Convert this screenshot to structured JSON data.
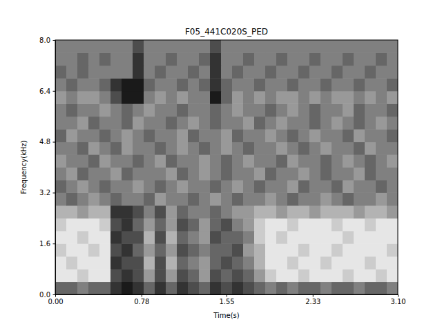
{
  "chart_data": {
    "type": "heatmap",
    "title": "F05_441C020S_PED",
    "x_label": "Time(s)",
    "y_label": "Frequency(kHz)",
    "xlim": [
      0,
      3.1
    ],
    "ylim": [
      0,
      8.0
    ],
    "xticks": [
      {
        "value": 0,
        "label": "0.00"
      },
      0.78,
      1.55,
      2.33,
      {
        "value": 3.1,
        "label": "3.10"
      }
    ],
    "yticks": [
      {
        "value": 0,
        "label": "0.0"
      },
      1.6,
      3.2,
      4.8,
      6.4,
      {
        "value": 8.0,
        "label": "8.0"
      }
    ],
    "color_range": [
      0,
      1
    ],
    "cells": [
      [
        0.6,
        0.6,
        0.5,
        0.6,
        0.6,
        0.8,
        0.9,
        0.8,
        0.6,
        0.8,
        0.6,
        0.8,
        0.7,
        0.6,
        0.8,
        0.7,
        0.8,
        0.7,
        0.6,
        0.5,
        0.6,
        0.5,
        0.6,
        0.6,
        0.5,
        0.6,
        0.6,
        0.5,
        0.6,
        0.6,
        0.5
      ],
      [
        0.1,
        0.1,
        0.2,
        0.1,
        0.1,
        0.7,
        0.8,
        0.7,
        0.4,
        0.7,
        0.4,
        0.7,
        0.6,
        0.4,
        0.7,
        0.6,
        0.7,
        0.6,
        0.4,
        0.2,
        0.1,
        0.1,
        0.2,
        0.1,
        0.1,
        0.1,
        0.2,
        0.1,
        0.1,
        0.2,
        0.1
      ],
      [
        0.1,
        0.2,
        0.1,
        0.1,
        0.1,
        0.8,
        0.7,
        0.7,
        0.3,
        0.7,
        0.3,
        0.6,
        0.5,
        0.4,
        0.6,
        0.7,
        0.6,
        0.5,
        0.3,
        0.1,
        0.1,
        0.2,
        0.1,
        0.1,
        0.2,
        0.1,
        0.1,
        0.1,
        0.2,
        0.1,
        0.1
      ],
      [
        0.2,
        0.1,
        0.1,
        0.2,
        0.1,
        0.7,
        0.8,
        0.6,
        0.4,
        0.6,
        0.4,
        0.7,
        0.6,
        0.5,
        0.6,
        0.6,
        0.7,
        0.4,
        0.3,
        0.1,
        0.1,
        0.1,
        0.2,
        0.1,
        0.1,
        0.2,
        0.1,
        0.1,
        0.1,
        0.1,
        0.2
      ],
      [
        0.1,
        0.1,
        0.2,
        0.1,
        0.1,
        0.8,
        0.7,
        0.7,
        0.3,
        0.7,
        0.3,
        0.6,
        0.5,
        0.4,
        0.7,
        0.6,
        0.6,
        0.5,
        0.2,
        0.1,
        0.2,
        0.1,
        0.1,
        0.1,
        0.1,
        0.1,
        0.2,
        0.1,
        0.1,
        0.1,
        0.1
      ],
      [
        0.2,
        0.1,
        0.1,
        0.1,
        0.2,
        0.7,
        0.8,
        0.6,
        0.4,
        0.6,
        0.4,
        0.7,
        0.6,
        0.4,
        0.6,
        0.7,
        0.5,
        0.4,
        0.2,
        0.1,
        0.1,
        0.2,
        0.1,
        0.1,
        0.1,
        0.2,
        0.1,
        0.1,
        0.2,
        0.1,
        0.1
      ],
      [
        0.3,
        0.3,
        0.4,
        0.3,
        0.3,
        0.8,
        0.8,
        0.7,
        0.5,
        0.7,
        0.4,
        0.6,
        0.5,
        0.5,
        0.6,
        0.5,
        0.4,
        0.4,
        0.3,
        0.3,
        0.4,
        0.3,
        0.3,
        0.4,
        0.3,
        0.3,
        0.3,
        0.4,
        0.3,
        0.3,
        0.4
      ],
      [
        0.5,
        0.6,
        0.5,
        0.4,
        0.5,
        0.6,
        0.5,
        0.5,
        0.6,
        0.4,
        0.5,
        0.5,
        0.6,
        0.5,
        0.4,
        0.5,
        0.6,
        0.5,
        0.5,
        0.4,
        0.5,
        0.6,
        0.5,
        0.5,
        0.4,
        0.5,
        0.6,
        0.5,
        0.5,
        0.4,
        0.5
      ],
      [
        0.6,
        0.5,
        0.4,
        0.5,
        0.6,
        0.5,
        0.5,
        0.4,
        0.5,
        0.6,
        0.5,
        0.4,
        0.5,
        0.5,
        0.6,
        0.5,
        0.4,
        0.5,
        0.6,
        0.5,
        0.5,
        0.4,
        0.6,
        0.5,
        0.5,
        0.6,
        0.4,
        0.5,
        0.5,
        0.6,
        0.5
      ],
      [
        0.5,
        0.4,
        0.6,
        0.5,
        0.5,
        0.4,
        0.6,
        0.5,
        0.5,
        0.5,
        0.4,
        0.6,
        0.5,
        0.4,
        0.5,
        0.6,
        0.5,
        0.5,
        0.4,
        0.6,
        0.5,
        0.5,
        0.4,
        0.5,
        0.6,
        0.5,
        0.5,
        0.4,
        0.6,
        0.5,
        0.5
      ],
      [
        0.4,
        0.5,
        0.5,
        0.6,
        0.4,
        0.5,
        0.5,
        0.6,
        0.5,
        0.4,
        0.6,
        0.5,
        0.5,
        0.4,
        0.5,
        0.6,
        0.5,
        0.4,
        0.5,
        0.5,
        0.6,
        0.4,
        0.5,
        0.5,
        0.6,
        0.5,
        0.4,
        0.5,
        0.6,
        0.5,
        0.4
      ],
      [
        0.5,
        0.5,
        0.6,
        0.4,
        0.5,
        0.6,
        0.4,
        0.5,
        0.5,
        0.6,
        0.5,
        0.4,
        0.5,
        0.6,
        0.5,
        0.4,
        0.5,
        0.6,
        0.5,
        0.5,
        0.4,
        0.5,
        0.6,
        0.5,
        0.4,
        0.5,
        0.5,
        0.6,
        0.4,
        0.5,
        0.5
      ],
      [
        0.6,
        0.4,
        0.5,
        0.5,
        0.6,
        0.5,
        0.4,
        0.5,
        0.6,
        0.5,
        0.5,
        0.4,
        0.6,
        0.5,
        0.5,
        0.4,
        0.6,
        0.5,
        0.5,
        0.4,
        0.5,
        0.6,
        0.5,
        0.4,
        0.5,
        0.5,
        0.6,
        0.4,
        0.5,
        0.5,
        0.6
      ],
      [
        0.5,
        0.5,
        0.4,
        0.6,
        0.5,
        0.5,
        0.6,
        0.4,
        0.5,
        0.5,
        0.6,
        0.5,
        0.4,
        0.5,
        0.6,
        0.5,
        0.5,
        0.4,
        0.6,
        0.5,
        0.4,
        0.5,
        0.5,
        0.6,
        0.5,
        0.4,
        0.5,
        0.6,
        0.5,
        0.4,
        0.5
      ],
      [
        0.5,
        0.6,
        0.5,
        0.5,
        0.4,
        0.5,
        0.6,
        0.5,
        0.4,
        0.5,
        0.5,
        0.6,
        0.5,
        0.5,
        0.6,
        0.5,
        0.4,
        0.5,
        0.5,
        0.6,
        0.5,
        0.4,
        0.5,
        0.6,
        0.5,
        0.5,
        0.4,
        0.6,
        0.5,
        0.5,
        0.6
      ],
      [
        0.4,
        0.5,
        0.4,
        0.4,
        0.5,
        0.7,
        0.9,
        0.9,
        0.5,
        0.4,
        0.5,
        0.4,
        0.5,
        0.5,
        0.9,
        0.6,
        0.4,
        0.5,
        0.4,
        0.5,
        0.4,
        0.4,
        0.5,
        0.4,
        0.5,
        0.4,
        0.4,
        0.5,
        0.4,
        0.5,
        0.4
      ],
      [
        0.5,
        0.6,
        0.5,
        0.5,
        0.6,
        0.8,
        0.9,
        0.9,
        0.6,
        0.5,
        0.5,
        0.6,
        0.5,
        0.6,
        0.8,
        0.6,
        0.5,
        0.5,
        0.6,
        0.5,
        0.5,
        0.6,
        0.5,
        0.5,
        0.6,
        0.5,
        0.5,
        0.6,
        0.5,
        0.5,
        0.6
      ],
      [
        0.6,
        0.5,
        0.6,
        0.5,
        0.5,
        0.5,
        0.5,
        0.8,
        0.5,
        0.6,
        0.5,
        0.5,
        0.6,
        0.5,
        0.8,
        0.5,
        0.6,
        0.5,
        0.5,
        0.6,
        0.5,
        0.5,
        0.6,
        0.5,
        0.5,
        0.6,
        0.5,
        0.5,
        0.6,
        0.5,
        0.5
      ],
      [
        0.5,
        0.5,
        0.6,
        0.5,
        0.6,
        0.5,
        0.5,
        0.8,
        0.5,
        0.5,
        0.6,
        0.5,
        0.5,
        0.6,
        0.8,
        0.5,
        0.5,
        0.6,
        0.5,
        0.5,
        0.6,
        0.5,
        0.5,
        0.6,
        0.5,
        0.5,
        0.6,
        0.5,
        0.5,
        0.6,
        0.5
      ],
      [
        0.5,
        0.5,
        0.5,
        0.5,
        0.5,
        0.5,
        0.5,
        0.7,
        0.5,
        0.5,
        0.5,
        0.5,
        0.5,
        0.5,
        0.7,
        0.5,
        0.5,
        0.5,
        0.5,
        0.5,
        0.5,
        0.5,
        0.5,
        0.5,
        0.5,
        0.5,
        0.5,
        0.5,
        0.5,
        0.5,
        0.5
      ]
    ]
  }
}
